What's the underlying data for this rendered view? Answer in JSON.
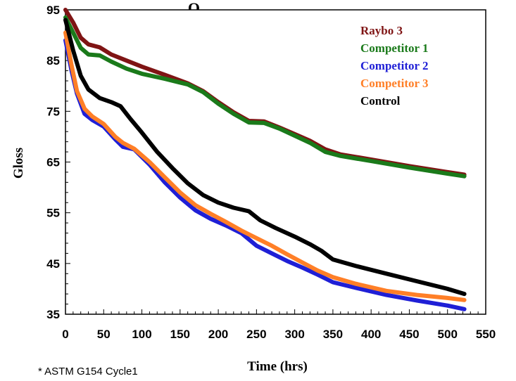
{
  "chart_data": {
    "type": "line",
    "title": "Q",
    "xlabel": "Time (hrs)",
    "ylabel": "Gloss",
    "xlim": [
      0,
      550
    ],
    "ylim": [
      35,
      95
    ],
    "x_ticks": [
      "0",
      "50",
      "100",
      "150",
      "200",
      "250",
      "300",
      "350",
      "400",
      "450",
      "500",
      "550"
    ],
    "y_ticks": [
      "35",
      "45",
      "55",
      "65",
      "75",
      "85",
      "95"
    ],
    "legend_position": "top-right",
    "grid": false,
    "series": [
      {
        "name": "Raybo 3",
        "color": "#7f1414",
        "points": [
          [
            0,
            95
          ],
          [
            10,
            92.5
          ],
          [
            20,
            89.5
          ],
          [
            30,
            88.2
          ],
          [
            45,
            87.6
          ],
          [
            60,
            86.2
          ],
          [
            80,
            85
          ],
          [
            100,
            83.8
          ],
          [
            130,
            82.2
          ],
          [
            160,
            80.5
          ],
          [
            180,
            79
          ],
          [
            200,
            76.8
          ],
          [
            220,
            74.8
          ],
          [
            240,
            73.1
          ],
          [
            260,
            73
          ],
          [
            280,
            71.8
          ],
          [
            300,
            70.5
          ],
          [
            320,
            69.2
          ],
          [
            340,
            67.5
          ],
          [
            360,
            66.5
          ],
          [
            400,
            65.5
          ],
          [
            450,
            64.2
          ],
          [
            500,
            63
          ],
          [
            522,
            62.5
          ]
        ]
      },
      {
        "name": "Competitor 1",
        "color": "#1a7a1a",
        "points": [
          [
            0,
            93.5
          ],
          [
            10,
            90.5
          ],
          [
            20,
            87.5
          ],
          [
            30,
            86.2
          ],
          [
            45,
            86
          ],
          [
            60,
            84.8
          ],
          [
            80,
            83.4
          ],
          [
            100,
            82.4
          ],
          [
            130,
            81.4
          ],
          [
            160,
            80.3
          ],
          [
            180,
            78.8
          ],
          [
            200,
            76.5
          ],
          [
            220,
            74.5
          ],
          [
            240,
            72.8
          ],
          [
            260,
            72.7
          ],
          [
            280,
            71.6
          ],
          [
            300,
            70.2
          ],
          [
            320,
            68.8
          ],
          [
            340,
            67
          ],
          [
            360,
            66.2
          ],
          [
            400,
            65.2
          ],
          [
            450,
            63.9
          ],
          [
            500,
            62.7
          ],
          [
            522,
            62.2
          ]
        ]
      },
      {
        "name": "Competitor 2",
        "color": "#1f1fd6",
        "points": [
          [
            0,
            89
          ],
          [
            8,
            83
          ],
          [
            15,
            78.5
          ],
          [
            25,
            74.5
          ],
          [
            35,
            73.3
          ],
          [
            50,
            72
          ],
          [
            65,
            69.5
          ],
          [
            75,
            68
          ],
          [
            90,
            67.5
          ],
          [
            110,
            64.5
          ],
          [
            130,
            61
          ],
          [
            150,
            58
          ],
          [
            170,
            55.5
          ],
          [
            190,
            53.8
          ],
          [
            210,
            52.5
          ],
          [
            230,
            51
          ],
          [
            250,
            48.5
          ],
          [
            270,
            47
          ],
          [
            290,
            45.5
          ],
          [
            310,
            44.2
          ],
          [
            330,
            42.8
          ],
          [
            350,
            41.3
          ],
          [
            380,
            40.2
          ],
          [
            420,
            38.8
          ],
          [
            460,
            37.7
          ],
          [
            500,
            36.7
          ],
          [
            522,
            36
          ]
        ]
      },
      {
        "name": "Competitor 3",
        "color": "#ff7f27",
        "points": [
          [
            0,
            90.5
          ],
          [
            8,
            84
          ],
          [
            15,
            79
          ],
          [
            25,
            75.5
          ],
          [
            35,
            74
          ],
          [
            50,
            72.5
          ],
          [
            65,
            70
          ],
          [
            75,
            68.8
          ],
          [
            90,
            67.6
          ],
          [
            110,
            65
          ],
          [
            130,
            62
          ],
          [
            150,
            59
          ],
          [
            170,
            56.5
          ],
          [
            190,
            54.8
          ],
          [
            210,
            53.2
          ],
          [
            230,
            51.5
          ],
          [
            250,
            50
          ],
          [
            270,
            48.5
          ],
          [
            290,
            46.8
          ],
          [
            310,
            45.2
          ],
          [
            330,
            43.6
          ],
          [
            350,
            42.3
          ],
          [
            380,
            41
          ],
          [
            420,
            39.6
          ],
          [
            460,
            38.8
          ],
          [
            500,
            38.2
          ],
          [
            522,
            37.8
          ]
        ]
      },
      {
        "name": "Control",
        "color": "#000000",
        "points": [
          [
            0,
            93
          ],
          [
            10,
            87
          ],
          [
            20,
            82
          ],
          [
            30,
            79.3
          ],
          [
            45,
            77.6
          ],
          [
            60,
            76.8
          ],
          [
            72,
            76
          ],
          [
            85,
            73.5
          ],
          [
            100,
            70.8
          ],
          [
            120,
            67
          ],
          [
            140,
            63.8
          ],
          [
            160,
            60.8
          ],
          [
            180,
            58.5
          ],
          [
            200,
            57
          ],
          [
            220,
            56
          ],
          [
            240,
            55.3
          ],
          [
            255,
            53.5
          ],
          [
            275,
            52
          ],
          [
            300,
            50.3
          ],
          [
            320,
            48.8
          ],
          [
            335,
            47.5
          ],
          [
            350,
            45.8
          ],
          [
            380,
            44.5
          ],
          [
            420,
            43
          ],
          [
            460,
            41.5
          ],
          [
            500,
            40
          ],
          [
            522,
            39
          ]
        ]
      }
    ]
  },
  "footnote": "* ASTM G154 Cycle1"
}
